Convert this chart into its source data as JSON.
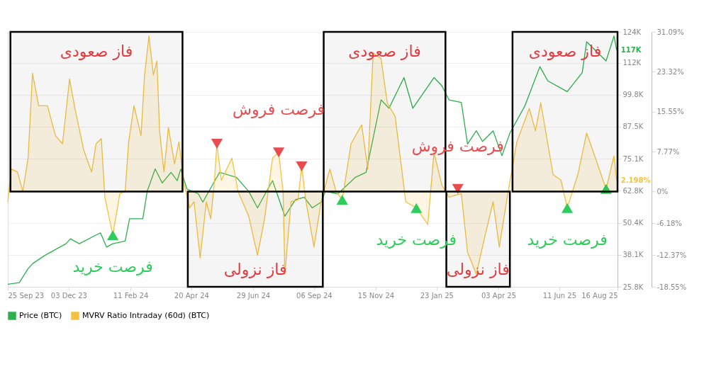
{
  "chart_data": {
    "type": "line",
    "legend": "bottom",
    "grid": "y",
    "xlim": [
      "2023-09-25",
      "2025-08-16"
    ],
    "xticks": [
      {
        "value": "2023-09-25",
        "label": "25 Sep 23"
      },
      {
        "value": "2023-12-03",
        "label": "03 Dec 23"
      },
      {
        "value": "2024-02-11",
        "label": "11 Feb 24"
      },
      {
        "value": "2024-04-20",
        "label": "20 Apr 24"
      },
      {
        "value": "2024-06-29",
        "label": "29 Jun 24"
      },
      {
        "value": "2024-09-06",
        "label": "06 Sep 24"
      },
      {
        "value": "2024-11-15",
        "label": "15 Nov 24"
      },
      {
        "value": "2025-01-23",
        "label": "23 Jan 25"
      },
      {
        "value": "2025-04-03",
        "label": "03 Apr 25"
      },
      {
        "value": "2025-06-11",
        "label": "11 Jun 25"
      },
      {
        "value": "2025-08-16",
        "label": "16 Aug 25"
      }
    ],
    "ylim": [
      25.8,
      124
    ],
    "yticks": [
      {
        "value": 124,
        "label": "124K"
      },
      {
        "value": 112,
        "label": "112K"
      },
      {
        "value": 99.8,
        "label": "99.8K"
      },
      {
        "value": 87.5,
        "label": "87.5K"
      },
      {
        "value": 75.1,
        "label": "75.1K"
      },
      {
        "value": 62.8,
        "label": "62.8K"
      },
      {
        "value": 50.4,
        "label": "50.4K"
      },
      {
        "value": 38.1,
        "label": "38.1K"
      },
      {
        "value": 25.8,
        "label": "25.8K"
      }
    ],
    "y2lim": [
      -18.55,
      31.09
    ],
    "y2ticks": [
      {
        "value": 31.09,
        "label": "31.09%"
      },
      {
        "value": 23.32,
        "label": "23.32%"
      },
      {
        "value": 15.55,
        "label": "15.55%"
      },
      {
        "value": 7.77,
        "label": "7.77%"
      },
      {
        "value": 0,
        "label": "0%"
      },
      {
        "value": -6.18,
        "label": "-6.18%"
      },
      {
        "value": -12.37,
        "label": "-12.37%"
      },
      {
        "value": -18.55,
        "label": "-18.55%"
      }
    ],
    "series": [
      {
        "name": "Price (BTC)",
        "color": "#2bb24c",
        "x": [
          "2023-09-25",
          "2023-10-08",
          "2023-10-18",
          "2023-10-23",
          "2023-11-06",
          "2023-11-30",
          "2023-12-05",
          "2023-12-15",
          "2024-01-08",
          "2024-01-15",
          "2024-01-22",
          "2024-02-05",
          "2024-02-10",
          "2024-02-25",
          "2024-03-01",
          "2024-03-10",
          "2024-03-18",
          "2024-03-28",
          "2024-04-04",
          "2024-04-08",
          "2024-04-15",
          "2024-04-28",
          "2024-05-03",
          "2024-05-22",
          "2024-06-10",
          "2024-06-24",
          "2024-07-04",
          "2024-07-21",
          "2024-08-04",
          "2024-08-16",
          "2024-08-26",
          "2024-09-04",
          "2024-09-14",
          "2024-09-19",
          "2024-10-03",
          "2024-10-23",
          "2024-11-04",
          "2024-11-21",
          "2024-11-30",
          "2024-12-17",
          "2024-12-27",
          "2025-01-20",
          "2025-01-29",
          "2025-02-06",
          "2025-02-20",
          "2025-02-27",
          "2025-03-09",
          "2025-03-16",
          "2025-03-28",
          "2025-04-07",
          "2025-04-16",
          "2025-05-03",
          "2025-05-20",
          "2025-05-29",
          "2025-06-20",
          "2025-07-07",
          "2025-07-12",
          "2025-08-03",
          "2025-08-12",
          "2025-08-15"
        ],
        "values": [
          26.8,
          27.4,
          32.8,
          34.7,
          37.9,
          42.4,
          44.3,
          42.4,
          46.6,
          41.1,
          42.4,
          43.4,
          52.0,
          52.0,
          62.6,
          71.2,
          65.8,
          69.9,
          66.7,
          71.2,
          63.5,
          61.6,
          58.4,
          69.9,
          68.0,
          62.6,
          56.2,
          66.7,
          53.0,
          59.4,
          60.3,
          56.2,
          58.4,
          62.6,
          61.6,
          68.0,
          69.9,
          97.8,
          94.6,
          106.4,
          94.6,
          106.4,
          103.2,
          97.8,
          96.8,
          80.8,
          85.9,
          81.8,
          85.9,
          76.3,
          85.0,
          95.5,
          110.6,
          105.1,
          101.0,
          108.3,
          120.2,
          112.8,
          122.4,
          117
        ],
        "value_labels": [
          null,
          null,
          null,
          null,
          null,
          null,
          null,
          null,
          null,
          null,
          null,
          null,
          null,
          null,
          null,
          null,
          null,
          null,
          null,
          null,
          null,
          null,
          null,
          null,
          null,
          null,
          null,
          null,
          null,
          null,
          null,
          null,
          null,
          null,
          null,
          null,
          null,
          null,
          null,
          null,
          null,
          null,
          null,
          null,
          null,
          null,
          null,
          null,
          null,
          null,
          null,
          null,
          null,
          null,
          null,
          null,
          null,
          null,
          null,
          "117K"
        ]
      },
      {
        "name": "MVRV Ratio Intraday (60d) (BTC)",
        "type": "area",
        "axis": "y2",
        "color": "#f5c142",
        "x": [
          "2023-09-25",
          "2023-09-29",
          "2023-10-06",
          "2023-10-12",
          "2023-10-18",
          "2023-10-23",
          "2023-10-30",
          "2023-11-09",
          "2023-11-18",
          "2023-11-26",
          "2023-12-04",
          "2023-12-10",
          "2023-12-20",
          "2023-12-29",
          "2024-01-03",
          "2024-01-09",
          "2024-01-13",
          "2024-01-22",
          "2024-01-30",
          "2024-02-05",
          "2024-02-09",
          "2024-02-15",
          "2024-02-23",
          "2024-02-27",
          "2024-03-03",
          "2024-03-08",
          "2024-03-12",
          "2024-03-15",
          "2024-03-20",
          "2024-03-25",
          "2024-04-01",
          "2024-04-06",
          "2024-04-11",
          "2024-04-18",
          "2024-04-23",
          "2024-04-30",
          "2024-05-07",
          "2024-05-12",
          "2024-05-16",
          "2024-05-19",
          "2024-05-24",
          "2024-06-05",
          "2024-06-12",
          "2024-06-24",
          "2024-07-04",
          "2024-07-12",
          "2024-07-21",
          "2024-07-28",
          "2024-08-02",
          "2024-08-04",
          "2024-08-11",
          "2024-08-19",
          "2024-08-23",
          "2024-08-28",
          "2024-09-06",
          "2024-09-14",
          "2024-09-24",
          "2024-10-01",
          "2024-10-08",
          "2024-10-18",
          "2024-10-30",
          "2024-11-06",
          "2024-11-12",
          "2024-11-21",
          "2024-11-28",
          "2024-12-07",
          "2024-12-19",
          "2024-12-31",
          "2025-01-13",
          "2025-01-20",
          "2025-01-29",
          "2025-02-06",
          "2025-02-20",
          "2025-02-27",
          "2025-03-09",
          "2025-03-18",
          "2025-03-28",
          "2025-04-04",
          "2025-04-14",
          "2025-04-24",
          "2025-05-08",
          "2025-05-15",
          "2025-05-21",
          "2025-06-04",
          "2025-06-13",
          "2025-06-20",
          "2025-07-02",
          "2025-07-12",
          "2025-07-22",
          "2025-08-03",
          "2025-08-12",
          "2025-08-15"
        ],
        "values": [
          -2.0,
          4.4,
          3.8,
          0.0,
          6.5,
          23.0,
          16.7,
          16.7,
          10.9,
          9.3,
          21.9,
          16.2,
          8.1,
          3.8,
          9.3,
          10.3,
          -1.1,
          -8.5,
          -0.4,
          0.0,
          9.7,
          16.7,
          10.9,
          22.7,
          30.3,
          22.7,
          25.4,
          11.8,
          3.8,
          12.5,
          5.4,
          9.7,
          2.2,
          -3.2,
          -2.0,
          -12.9,
          -2.0,
          -5.3,
          1.7,
          9.3,
          2.2,
          6.5,
          0.0,
          -4.8,
          -12.4,
          -5.3,
          6.5,
          7.6,
          0.0,
          -16.1,
          -2.0,
          -1.6,
          4.9,
          -2.0,
          -10.8,
          -2.0,
          4.4,
          0.0,
          -1.6,
          9.3,
          13.0,
          4.4,
          27.0,
          25.9,
          17.3,
          14.6,
          -2.0,
          -3.2,
          -6.4,
          7.6,
          1.2,
          -1.1,
          -0.4,
          -11.8,
          -16.1,
          -9.2,
          -2.0,
          -10.8,
          0.0,
          9.7,
          16.2,
          11.8,
          17.3,
          3.3,
          2.2,
          -3.2,
          3.3,
          11.4,
          6.5,
          0.5,
          6.9,
          2.198
        ],
        "value_labels": [
          null,
          null,
          null,
          null,
          null,
          null,
          null,
          null,
          null,
          null,
          null,
          null,
          null,
          null,
          null,
          null,
          null,
          null,
          null,
          null,
          null,
          null,
          null,
          null,
          null,
          null,
          null,
          null,
          null,
          null,
          null,
          null,
          null,
          null,
          null,
          null,
          null,
          null,
          null,
          null,
          null,
          null,
          null,
          null,
          null,
          null,
          null,
          null,
          null,
          null,
          null,
          null,
          null,
          null,
          null,
          null,
          null,
          null,
          null,
          null,
          null,
          null,
          null,
          null,
          null,
          null,
          null,
          null,
          null,
          null,
          null,
          null,
          null,
          null,
          null,
          null,
          null,
          null,
          null,
          null,
          null,
          null,
          null,
          null,
          null,
          null,
          null,
          null,
          null,
          null,
          null,
          "2.198%"
        ]
      },
      {
        "type": "scatter",
        "axis": "y2",
        "color": "#e84c4f",
        "marker": "triangle",
        "x": [
          "2024-05-19",
          "2024-07-28",
          "2024-08-23",
          "2025-02-16"
        ],
        "values": [
          9.3,
          7.6,
          4.9,
          0.5
        ]
      },
      {
        "type": "scatter",
        "axis": "y2",
        "color": "#2ecc5b",
        "marker": "triangle",
        "x": [
          "2024-01-22",
          "2024-10-08",
          "2024-12-31",
          "2025-06-20",
          "2025-08-03"
        ],
        "values": [
          -8.5,
          -1.6,
          -3.2,
          -3.2,
          0.5
        ]
      }
    ],
    "bands": [
      {
        "axis": "x",
        "from": "2023-09-28",
        "to": "2024-04-10",
        "label": "فاز صعودی",
        "color": "#000000"
      },
      {
        "axis": "x",
        "from": "2024-04-16",
        "to": "2024-09-16",
        "label": "فاز نزولی",
        "color": "#000000"
      },
      {
        "axis": "x",
        "from": "2024-09-17",
        "to": "2025-02-02",
        "label": "فاز صعودی",
        "color": "#000000"
      },
      {
        "axis": "x",
        "from": "2025-02-03",
        "to": "2025-04-16",
        "label": "فاز نزولی",
        "color": "#000000"
      },
      {
        "axis": "x",
        "from": "2025-04-19",
        "to": "2025-08-16",
        "label": "فاز صعودی",
        "color": "#000000"
      }
    ],
    "annotations": [
      "فرصت فروش",
      "فرصت فروش",
      "فرصت خرید",
      "فرصت خرید",
      "فرصت خرید"
    ]
  }
}
